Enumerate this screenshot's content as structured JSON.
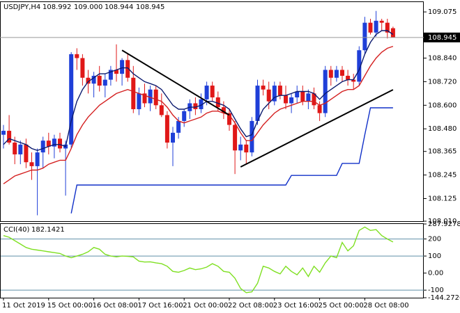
{
  "chart_data": [
    {
      "type": "candlestick",
      "title": "USDJPY,H4",
      "header_values": [
        "108.992",
        "109.000",
        "108.944",
        "108.945"
      ],
      "categories": [
        "11 Oct 2019",
        null,
        null,
        null,
        null,
        null,
        null,
        null,
        "15 Oct 00:00",
        null,
        null,
        null,
        null,
        null,
        null,
        null,
        "16 Oct 08:00",
        null,
        null,
        null,
        null,
        null,
        null,
        null,
        "17 Oct 16:00",
        null,
        null,
        null,
        null,
        null,
        null,
        null,
        "21 Oct 00:00",
        null,
        null,
        null,
        null,
        null,
        null,
        null,
        "22 Oct 08:00",
        null,
        null,
        null,
        null,
        null,
        null,
        null,
        "23 Oct 16:00",
        null,
        null,
        null,
        null,
        null,
        null,
        null,
        "25 Oct 00:00",
        null,
        null,
        null,
        null,
        null,
        null,
        null,
        "28 Oct 08:00",
        null,
        null,
        null,
        null,
        null
      ],
      "candles": [
        [
          108.45,
          108.5,
          108.38,
          108.47
        ],
        [
          108.47,
          108.55,
          108.4,
          108.41
        ],
        [
          108.41,
          108.44,
          108.3,
          108.35
        ],
        [
          108.35,
          108.42,
          108.3,
          108.4
        ],
        [
          108.4,
          108.43,
          108.28,
          108.31
        ],
        [
          108.31,
          108.36,
          108.22,
          108.29
        ],
        [
          108.29,
          108.38,
          108.04,
          108.36
        ],
        [
          108.36,
          108.44,
          108.28,
          108.42
        ],
        [
          108.42,
          108.46,
          108.35,
          108.39
        ],
        [
          108.39,
          108.45,
          108.33,
          108.43
        ],
        [
          108.43,
          108.46,
          108.36,
          108.38
        ],
        [
          108.38,
          108.42,
          108.14,
          108.4
        ],
        [
          108.4,
          108.87,
          108.38,
          108.86
        ],
        [
          108.86,
          108.89,
          108.78,
          108.84
        ],
        [
          108.84,
          108.86,
          108.7,
          108.74
        ],
        [
          108.74,
          108.78,
          108.66,
          108.71
        ],
        [
          108.71,
          108.77,
          108.64,
          108.75
        ],
        [
          108.75,
          108.8,
          108.67,
          108.7
        ],
        [
          108.7,
          108.76,
          108.64,
          108.73
        ],
        [
          108.73,
          108.8,
          108.7,
          108.78
        ],
        [
          108.78,
          108.91,
          108.72,
          108.76
        ],
        [
          108.76,
          108.84,
          108.7,
          108.83
        ],
        [
          108.83,
          108.86,
          108.72,
          108.74
        ],
        [
          108.74,
          108.8,
          108.56,
          108.58
        ],
        [
          108.58,
          108.69,
          108.55,
          108.66
        ],
        [
          108.66,
          108.71,
          108.59,
          108.61
        ],
        [
          108.61,
          108.7,
          108.57,
          108.68
        ],
        [
          108.68,
          108.7,
          108.58,
          108.6
        ],
        [
          108.6,
          108.66,
          108.54,
          108.55
        ],
        [
          108.55,
          108.57,
          108.38,
          108.41
        ],
        [
          108.41,
          108.49,
          108.29,
          108.46
        ],
        [
          108.46,
          108.54,
          108.43,
          108.52
        ],
        [
          108.52,
          108.58,
          108.49,
          108.57
        ],
        [
          108.57,
          108.63,
          108.53,
          108.61
        ],
        [
          108.61,
          108.64,
          108.55,
          108.58
        ],
        [
          108.58,
          108.66,
          108.56,
          108.63
        ],
        [
          108.63,
          108.72,
          108.6,
          108.7
        ],
        [
          108.7,
          108.72,
          108.62,
          108.64
        ],
        [
          108.64,
          108.67,
          108.57,
          108.59
        ],
        [
          108.59,
          108.62,
          108.53,
          108.56
        ],
        [
          108.56,
          108.58,
          108.47,
          108.5
        ],
        [
          108.5,
          108.52,
          108.25,
          108.37
        ],
        [
          108.37,
          108.44,
          108.32,
          108.4
        ],
        [
          108.4,
          108.42,
          108.3,
          108.36
        ],
        [
          108.36,
          108.54,
          108.34,
          108.52
        ],
        [
          108.52,
          108.73,
          108.5,
          108.7
        ],
        [
          108.7,
          108.73,
          108.65,
          108.68
        ],
        [
          108.68,
          108.72,
          108.58,
          108.62
        ],
        [
          108.62,
          108.72,
          108.6,
          108.7
        ],
        [
          108.7,
          108.72,
          108.63,
          108.65
        ],
        [
          108.65,
          108.7,
          108.58,
          108.61
        ],
        [
          108.61,
          108.66,
          108.56,
          108.64
        ],
        [
          108.64,
          108.7,
          108.61,
          108.67
        ],
        [
          108.67,
          108.7,
          108.6,
          108.62
        ],
        [
          108.62,
          108.68,
          108.58,
          108.66
        ],
        [
          108.66,
          108.69,
          108.58,
          108.6
        ],
        [
          108.6,
          108.62,
          108.52,
          108.56
        ],
        [
          108.56,
          108.8,
          108.54,
          108.78
        ],
        [
          108.78,
          108.8,
          108.7,
          108.74
        ],
        [
          108.74,
          108.8,
          108.72,
          108.78
        ],
        [
          108.78,
          108.8,
          108.72,
          108.75
        ],
        [
          108.75,
          108.78,
          108.7,
          108.73
        ],
        [
          108.73,
          108.76,
          108.68,
          108.72
        ],
        [
          108.72,
          108.9,
          108.7,
          108.88
        ],
        [
          108.88,
          109.05,
          108.86,
          109.02
        ],
        [
          109.02,
          109.04,
          108.96,
          108.97
        ],
        [
          108.97,
          109.08,
          108.95,
          109.03
        ],
        [
          109.03,
          109.04,
          108.98,
          109.02
        ],
        [
          109.02,
          109.04,
          108.94,
          108.97
        ],
        [
          108.992,
          109.0,
          108.944,
          108.945
        ]
      ],
      "up_color": "#1f3fd8",
      "down_color": "#e01818",
      "series": [
        {
          "color": "#0b1a6e",
          "values": [
            108.4,
            108.43,
            108.42,
            108.41,
            108.4,
            108.38,
            108.37,
            108.38,
            108.39,
            108.4,
            108.4,
            108.39,
            108.52,
            108.62,
            108.68,
            108.72,
            108.74,
            108.76,
            108.76,
            108.77,
            108.78,
            108.79,
            108.79,
            108.76,
            108.74,
            108.72,
            108.71,
            108.7,
            108.68,
            108.64,
            108.6,
            108.58,
            108.58,
            108.59,
            108.59,
            108.6,
            108.62,
            108.62,
            108.61,
            108.6,
            108.58,
            108.53,
            108.48,
            108.44,
            108.45,
            108.52,
            108.58,
            108.61,
            108.64,
            108.65,
            108.65,
            108.66,
            108.67,
            108.67,
            108.67,
            108.66,
            108.63,
            108.66,
            108.68,
            108.7,
            108.72,
            108.73,
            108.73,
            108.78,
            108.86,
            108.92,
            108.96,
            108.98,
            108.98,
            108.96
          ]
        },
        {
          "color": "#d42020",
          "values": [
            108.2,
            108.22,
            108.24,
            108.25,
            108.26,
            108.27,
            108.27,
            108.28,
            108.3,
            108.31,
            108.32,
            108.32,
            108.38,
            108.45,
            108.5,
            108.54,
            108.57,
            108.6,
            108.62,
            108.64,
            108.66,
            108.67,
            108.68,
            108.67,
            108.66,
            108.65,
            108.64,
            108.63,
            108.62,
            108.59,
            108.55,
            108.52,
            108.51,
            108.52,
            108.53,
            108.54,
            108.56,
            108.57,
            108.57,
            108.56,
            108.55,
            108.51,
            108.46,
            108.42,
            108.42,
            108.46,
            108.5,
            108.53,
            108.56,
            108.58,
            108.59,
            108.6,
            108.61,
            108.62,
            108.62,
            108.62,
            108.6,
            108.61,
            108.63,
            108.65,
            108.67,
            108.68,
            108.68,
            108.7,
            108.75,
            108.8,
            108.84,
            108.87,
            108.89,
            108.9
          ]
        },
        {
          "color": "#1030c8",
          "values": [
            null,
            null,
            null,
            null,
            null,
            null,
            null,
            null,
            null,
            null,
            null,
            null,
            108.05,
            108.194,
            108.194,
            108.194,
            108.194,
            108.194,
            108.194,
            108.194,
            108.194,
            108.194,
            108.194,
            108.194,
            108.194,
            108.194,
            108.194,
            108.194,
            108.194,
            108.194,
            108.194,
            108.194,
            108.194,
            108.194,
            108.194,
            108.194,
            108.194,
            108.194,
            108.194,
            108.194,
            108.194,
            108.194,
            108.194,
            108.194,
            108.194,
            108.194,
            108.194,
            108.194,
            108.194,
            108.194,
            108.194,
            108.243,
            108.243,
            108.243,
            108.243,
            108.243,
            108.243,
            108.243,
            108.243,
            108.243,
            108.304,
            108.304,
            108.304,
            108.304,
            108.45,
            108.587,
            108.587,
            108.587,
            108.587,
            108.587
          ]
        }
      ],
      "trendlines": [
        [
          21,
          108.88,
          40,
          108.55
        ],
        [
          42,
          108.286,
          69,
          108.679
        ]
      ],
      "last_price": 108.945,
      "ylim": [
        108.01,
        109.125
      ],
      "yticks": [
        {
          "value": 108.01,
          "label": "108.010"
        },
        108.125,
        108.245,
        108.365,
        {
          "value": 108.48,
          "label": "108.480"
        },
        {
          "value": 108.6,
          "label": "108.600"
        },
        {
          "value": 108.72,
          "label": "108.720"
        },
        {
          "value": 108.84,
          "label": "108.840"
        },
        109.075
      ]
    },
    {
      "type": "line",
      "title": "CCI(40)",
      "series": [
        {
          "color": "#7fe022",
          "values": [
            220,
            210,
            190,
            170,
            150,
            140,
            135,
            130,
            125,
            120,
            115,
            100,
            90,
            100,
            110,
            125,
            150,
            140,
            110,
            100,
            95,
            100,
            98,
            95,
            70,
            65,
            66,
            60,
            55,
            40,
            10,
            5,
            15,
            30,
            20,
            25,
            35,
            55,
            40,
            10,
            5,
            -30,
            -90,
            -115,
            -110,
            -60,
            40,
            30,
            10,
            -5,
            40,
            10,
            -10,
            30,
            -20,
            40,
            5,
            60,
            100,
            90,
            180,
            130,
            160,
            250,
            270,
            250,
            255,
            220,
            200,
            182.1421
          ]
        }
      ],
      "levels": [
        200,
        100,
        -100
      ],
      "ylim": [
        -144.2726,
        287.9278
      ],
      "yticks": [
        287.9278,
        200,
        100,
        {
          "value": 0,
          "label": "0.00"
        },
        -100,
        -144.2726
      ]
    }
  ]
}
